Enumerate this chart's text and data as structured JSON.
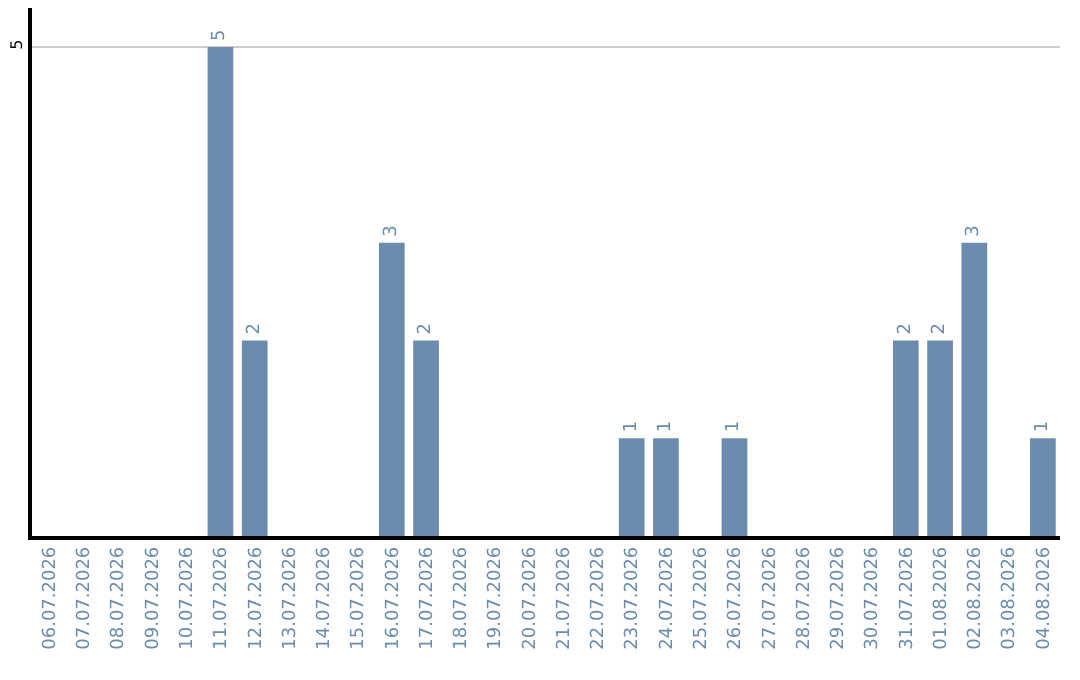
{
  "chart_data": {
    "type": "bar",
    "categories": [
      "06.07.2026",
      "07.07.2026",
      "08.07.2026",
      "09.07.2026",
      "10.07.2026",
      "11.07.2026",
      "12.07.2026",
      "13.07.2026",
      "14.07.2026",
      "15.07.2026",
      "16.07.2026",
      "17.07.2026",
      "18.07.2026",
      "19.07.2026",
      "20.07.2026",
      "21.07.2026",
      "22.07.2026",
      "23.07.2026",
      "24.07.2026",
      "25.07.2026",
      "26.07.2026",
      "27.07.2026",
      "28.07.2026",
      "29.07.2026",
      "30.07.2026",
      "31.07.2026",
      "01.08.2026",
      "02.08.2026",
      "03.08.2026",
      "04.08.2026"
    ],
    "values": [
      0,
      0,
      0,
      0,
      0,
      5,
      2,
      0,
      0,
      0,
      3,
      2,
      0,
      0,
      0,
      0,
      0,
      1,
      1,
      0,
      1,
      0,
      0,
      0,
      0,
      2,
      2,
      3,
      0,
      1
    ],
    "value_labels": [
      null,
      null,
      null,
      null,
      null,
      "5",
      "2",
      null,
      null,
      null,
      "3",
      "2",
      null,
      null,
      null,
      null,
      null,
      "1",
      "1",
      null,
      "1",
      null,
      null,
      null,
      null,
      "2",
      "2",
      "3",
      null,
      "1"
    ],
    "color": "#6b8cae",
    "ylim": [
      0,
      5.4
    ],
    "yticks": [
      5
    ],
    "grid": "y",
    "legend": false
  }
}
